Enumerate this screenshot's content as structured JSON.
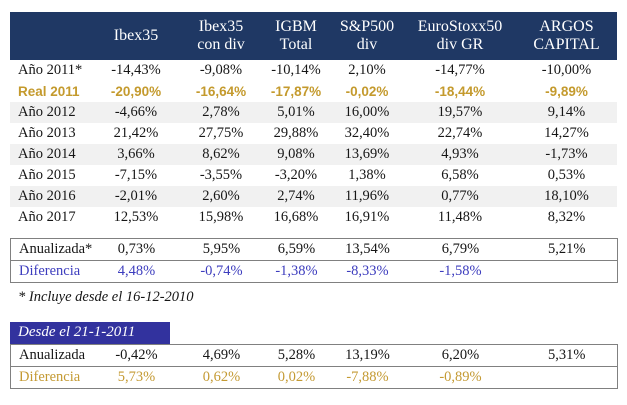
{
  "colors": {
    "header_bg": "#1f3864",
    "gold": "#c49a33",
    "gold_bold": "#c49a2d",
    "blue": "#3d3dbe",
    "section2_bg": "#32329e",
    "stripe_bg": "#f1f1f1"
  },
  "header": {
    "columns": [
      "",
      "Ibex35",
      "Ibex35\ncon div",
      "IGBM\nTotal",
      "S&P500\ndiv",
      "EuroStoxx50\ndiv GR",
      "ARGOS\nCAPITAL"
    ]
  },
  "rows": [
    {
      "label": "Año 2011*",
      "values": [
        "-14,43%",
        "-9,08%",
        "-10,14%",
        "2,10%",
        "-14,77%",
        "-10,00%"
      ],
      "style": "normal"
    },
    {
      "label": "Real 2011",
      "values": [
        "-20,90%",
        "-16,64%",
        "-17,87%",
        "-0,02%",
        "-18,44%",
        "-9,89%"
      ],
      "style": "gold-bold"
    },
    {
      "label": "Año 2012",
      "values": [
        "-4,66%",
        "2,78%",
        "5,01%",
        "16,00%",
        "19,57%",
        "9,14%"
      ],
      "style": "stripe"
    },
    {
      "label": "Año 2013",
      "values": [
        "21,42%",
        "27,75%",
        "29,88%",
        "32,40%",
        "22,74%",
        "14,27%"
      ],
      "style": "normal"
    },
    {
      "label": "Año 2014",
      "values": [
        "3,66%",
        "8,62%",
        "9,08%",
        "13,69%",
        "4,93%",
        "-1,73%"
      ],
      "style": "stripe"
    },
    {
      "label": "Año 2015",
      "values": [
        "-7,15%",
        "-3,55%",
        "-3,20%",
        "1,38%",
        "6,58%",
        "0,53%"
      ],
      "style": "normal"
    },
    {
      "label": "Año 2016",
      "values": [
        "-2,01%",
        "2,60%",
        "2,74%",
        "11,96%",
        "0,77%",
        "18,10%"
      ],
      "style": "stripe"
    },
    {
      "label": "Año 2017",
      "values": [
        "12,53%",
        "15,98%",
        "16,68%",
        "16,91%",
        "11,48%",
        "8,32%"
      ],
      "style": "normal"
    }
  ],
  "summary1": {
    "rows": [
      {
        "label": "Anualizada*",
        "values": [
          "0,73%",
          "5,95%",
          "6,59%",
          "13,54%",
          "6,79%",
          "5,21%"
        ],
        "style": "normal"
      },
      {
        "label": "Diferencia",
        "values": [
          "4,48%",
          "-0,74%",
          "-1,38%",
          "-8,33%",
          "-1,58%",
          ""
        ],
        "style": "blue"
      }
    ]
  },
  "footnote": {
    "text": "* Incluye desde el 16-12-2010"
  },
  "section2": {
    "title": "Desde el 21-1-2011",
    "rows": [
      {
        "label": "Anualizada",
        "values": [
          "-0,42%",
          "4,69%",
          "5,28%",
          "13,19%",
          "6,20%",
          "5,31%"
        ],
        "style": "normal"
      },
      {
        "label": "Diferencia",
        "values": [
          "5,73%",
          "0,62%",
          "0,02%",
          "-7,88%",
          "-0,89%",
          ""
        ],
        "style": "gold"
      }
    ]
  }
}
